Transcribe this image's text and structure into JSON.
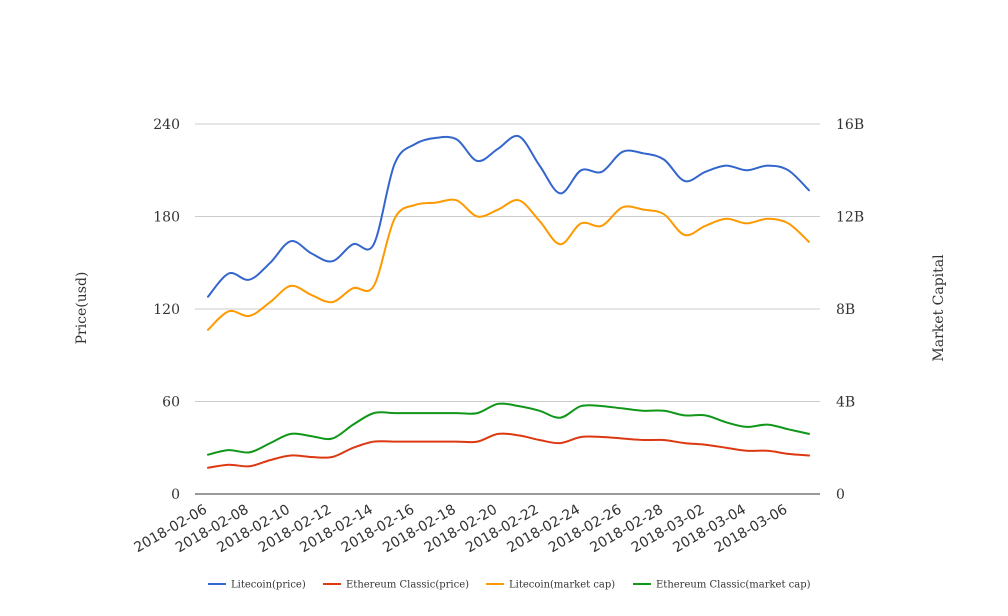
{
  "chart_data": {
    "type": "line",
    "title": "",
    "ylabel_left": "Price(usd)",
    "ylabel_right": "Market Capital",
    "y_left": {
      "min": 0,
      "max": 240,
      "ticks": [
        0,
        60,
        120,
        180,
        240
      ],
      "tick_labels": [
        "0",
        "60",
        "120",
        "180",
        "240"
      ]
    },
    "y_right": {
      "min": 0,
      "max": 16000000000,
      "ticks": [
        0,
        4000000000,
        8000000000,
        12000000000,
        16000000000
      ],
      "tick_labels": [
        "0",
        "4B",
        "8B",
        "12B",
        "16B"
      ]
    },
    "x": [
      "2018-02-06",
      "2018-02-07",
      "2018-02-08",
      "2018-02-09",
      "2018-02-10",
      "2018-02-11",
      "2018-02-12",
      "2018-02-13",
      "2018-02-14",
      "2018-02-15",
      "2018-02-16",
      "2018-02-17",
      "2018-02-18",
      "2018-02-19",
      "2018-02-20",
      "2018-02-21",
      "2018-02-22",
      "2018-02-23",
      "2018-02-24",
      "2018-02-25",
      "2018-02-26",
      "2018-02-27",
      "2018-02-28",
      "2018-03-01",
      "2018-03-02",
      "2018-03-03",
      "2018-03-04",
      "2018-03-05",
      "2018-03-06",
      "2018-03-07"
    ],
    "x_tick_labels": [
      "2018-02-06",
      "2018-02-08",
      "2018-02-10",
      "2018-02-12",
      "2018-02-14",
      "2018-02-16",
      "2018-02-18",
      "2018-02-20",
      "2018-02-22",
      "2018-02-24",
      "2018-02-26",
      "2018-02-28",
      "2018-03-02",
      "2018-03-04",
      "2018-03-06"
    ],
    "grid": true,
    "legend_position": "bottom",
    "series": [
      {
        "name": "Litecoin(price)",
        "axis": "left",
        "color": "#3366cc",
        "values": [
          128,
          143,
          139,
          150,
          164,
          156,
          151,
          162,
          162,
          214,
          227,
          231,
          230,
          216,
          224,
          232,
          213,
          195,
          210,
          209,
          222,
          221,
          217,
          203,
          209,
          213,
          210,
          213,
          210,
          197
        ]
      },
      {
        "name": "Ethereum Classic(price)",
        "axis": "left",
        "color": "#dc3912",
        "values": [
          17,
          19,
          18,
          22,
          25,
          24,
          24,
          30,
          34,
          34,
          34,
          34,
          34,
          34,
          39,
          38,
          35,
          33,
          37,
          37,
          36,
          35,
          35,
          33,
          32,
          30,
          28,
          28,
          26,
          25
        ]
      },
      {
        "name": "Litecoin(market cap)",
        "axis": "right",
        "color": "#ff9900",
        "values": [
          7100000000,
          7900000000,
          7700000000,
          8300000000,
          9000000000,
          8600000000,
          8300000000,
          8900000000,
          9000000000,
          11900000000,
          12500000000,
          12600000000,
          12700000000,
          12000000000,
          12300000000,
          12700000000,
          11800000000,
          10800000000,
          11700000000,
          11600000000,
          12400000000,
          12300000000,
          12100000000,
          11200000000,
          11600000000,
          11900000000,
          11700000000,
          11900000000,
          11700000000,
          10900000000
        ]
      },
      {
        "name": "Ethereum Classic(market cap)",
        "axis": "right",
        "color": "#109618",
        "values": [
          1700000000,
          1900000000,
          1800000000,
          2200000000,
          2600000000,
          2500000000,
          2400000000,
          3000000000,
          3500000000,
          3500000000,
          3500000000,
          3500000000,
          3500000000,
          3500000000,
          3900000000,
          3800000000,
          3600000000,
          3300000000,
          3800000000,
          3800000000,
          3700000000,
          3600000000,
          3600000000,
          3400000000,
          3400000000,
          3100000000,
          2900000000,
          3000000000,
          2800000000,
          2600000000
        ]
      }
    ]
  }
}
